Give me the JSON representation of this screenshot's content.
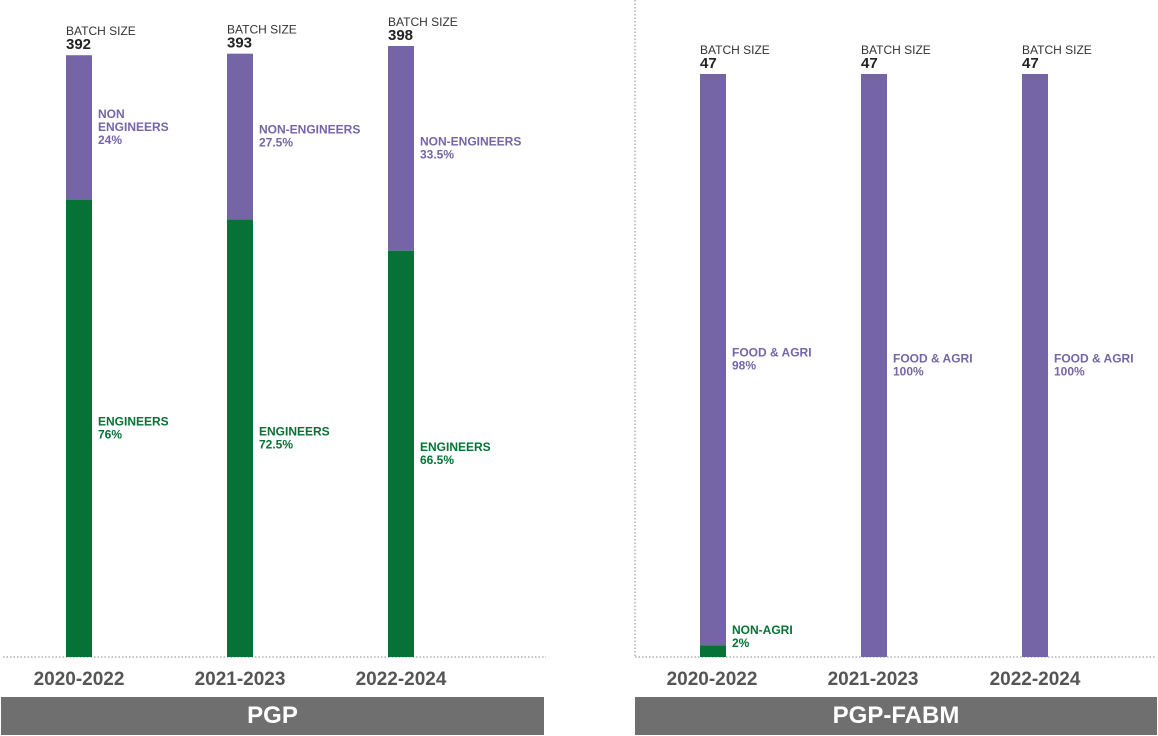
{
  "chart_data": [
    {
      "type": "bar",
      "stacked": true,
      "title": "PGP",
      "batch_size_label": "BATCH SIZE",
      "categories": [
        "2020-2022",
        "2021-2023",
        "2022-2024"
      ],
      "batch_sizes": [
        392,
        393,
        398
      ],
      "series": [
        {
          "name": "ENGINEERS",
          "labels": [
            "ENGINEERS",
            "ENGINEERS",
            "ENGINEERS"
          ],
          "values": [
            76,
            72.5,
            66.5
          ],
          "value_labels": [
            "76%",
            "72.5%",
            "66.5%"
          ],
          "color": "#067235"
        },
        {
          "name": "NON-ENGINEERS",
          "labels": [
            "NON ENGINEERS",
            "NON-ENGINEERS",
            "NON-ENGINEERS"
          ],
          "values": [
            24,
            27.5,
            33.5
          ],
          "value_labels": [
            "24%",
            "27.5%",
            "33.5%"
          ],
          "color": "#7565a6"
        }
      ],
      "axis_range_batch_size": [
        0,
        398
      ]
    },
    {
      "type": "bar",
      "stacked": true,
      "title": "PGP-FABM",
      "batch_size_label": "BATCH SIZE",
      "categories": [
        "2020-2022",
        "2021-2023",
        "2022-2024"
      ],
      "batch_sizes": [
        47,
        47,
        47
      ],
      "series": [
        {
          "name": "NON-AGRI",
          "labels": [
            "NON-AGRI",
            "",
            ""
          ],
          "values": [
            2,
            0,
            0
          ],
          "value_labels": [
            "2%",
            "",
            ""
          ],
          "color": "#067235"
        },
        {
          "name": "FOOD & AGRI",
          "labels": [
            "FOOD & AGRI",
            "FOOD & AGRI",
            "FOOD & AGRI"
          ],
          "values": [
            98,
            100,
            100
          ],
          "value_labels": [
            "98%",
            "100%",
            "100%"
          ],
          "color": "#7565a6"
        }
      ]
    }
  ],
  "colors": {
    "engineers": "#067235",
    "non_engineers": "#7565a6",
    "footer_bg": "#6f6f6f",
    "text": "#333333",
    "axis": "#888888"
  }
}
